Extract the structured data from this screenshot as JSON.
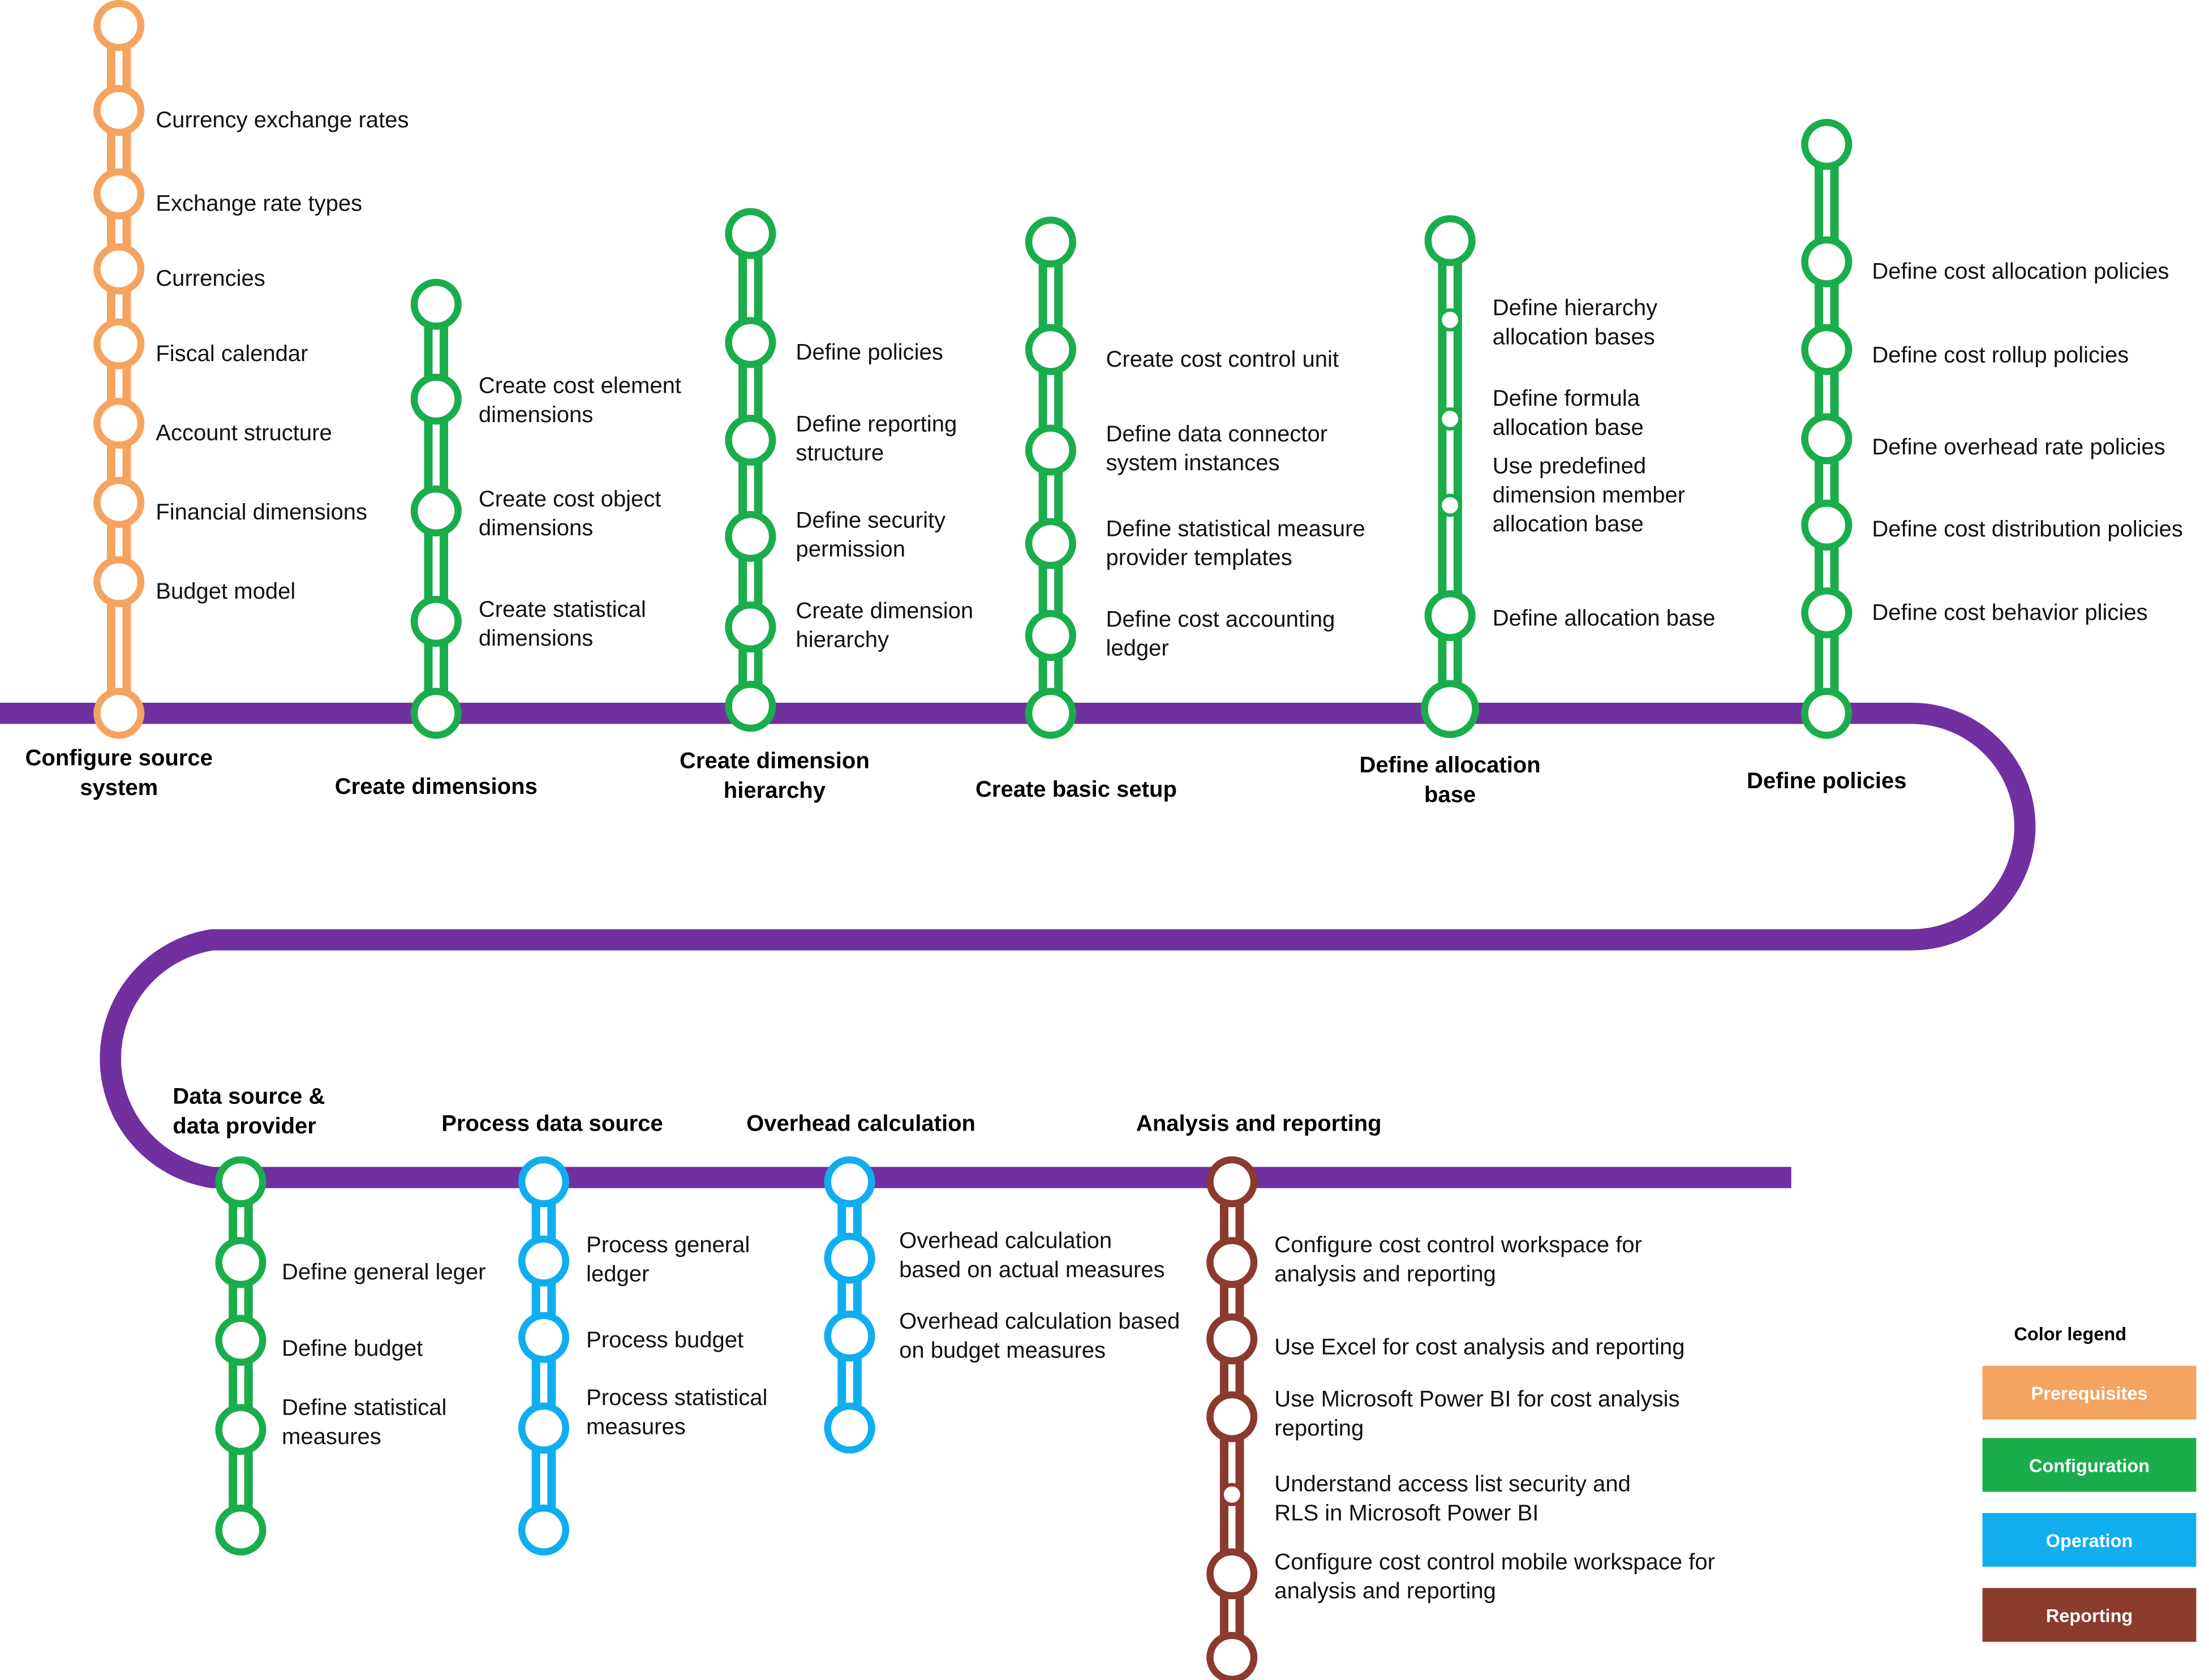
{
  "colors": {
    "line": "#7030a0",
    "prerequisites": "#f4a460",
    "configuration": "#1aad4b",
    "operation": "#10aeef",
    "reporting": "#8b3a2e"
  },
  "legend": {
    "title": "Color legend",
    "items": [
      {
        "label": "Prerequisites",
        "color_key": "prerequisites"
      },
      {
        "label": "Configuration",
        "color_key": "configuration"
      },
      {
        "label": "Operation",
        "color_key": "operation"
      },
      {
        "label": "Reporting",
        "color_key": "reporting"
      }
    ]
  },
  "stages": [
    {
      "id": "configure-source-system",
      "title": [
        "Configure source",
        "system"
      ],
      "category": "prerequisites",
      "items": [
        [
          "Currency exchange rates"
        ],
        [
          "Exchange rate types"
        ],
        [
          "Currencies"
        ],
        [
          "Fiscal calendar"
        ],
        [
          "Account structure"
        ],
        [
          "Financial dimensions"
        ],
        [
          "Budget model"
        ]
      ]
    },
    {
      "id": "create-dimensions",
      "title": [
        "Create dimensions"
      ],
      "category": "configuration",
      "items": [
        [
          "Create cost element",
          "dimensions"
        ],
        [
          "Create cost object",
          "dimensions"
        ],
        [
          "Create statistical",
          "dimensions"
        ]
      ]
    },
    {
      "id": "create-dimension-hierarchy",
      "title": [
        "Create dimension",
        "hierarchy"
      ],
      "category": "configuration",
      "items": [
        [
          "Define policies"
        ],
        [
          "Define reporting",
          "structure"
        ],
        [
          "Define security",
          "permission"
        ],
        [
          "Create dimension",
          "hierarchy"
        ]
      ]
    },
    {
      "id": "create-basic-setup",
      "title": [
        "Create basic setup"
      ],
      "category": "configuration",
      "items": [
        [
          "Create cost control unit"
        ],
        [
          "Define data connector",
          "system instances"
        ],
        [
          "Define statistical measure",
          "provider templates"
        ],
        [
          "Define cost accounting",
          "ledger"
        ]
      ]
    },
    {
      "id": "define-allocation-base",
      "title": [
        "Define allocation",
        "base"
      ],
      "category": "configuration",
      "items": [
        [
          "Define hierarchy",
          "allocation bases"
        ],
        [
          "Define formula",
          "allocation base"
        ],
        [
          "Use predefined",
          "dimension member",
          "allocation base"
        ],
        [
          "Define allocation base"
        ]
      ]
    },
    {
      "id": "define-policies",
      "title": [
        "Define policies"
      ],
      "category": "configuration",
      "items": [
        [
          "Define cost allocation policies"
        ],
        [
          "Define cost rollup policies"
        ],
        [
          "Define overhead rate policies"
        ],
        [
          "Define cost distribution policies"
        ],
        [
          "Define cost behavior plicies"
        ]
      ]
    },
    {
      "id": "data-source-data-provider",
      "title": [
        "Data source &",
        "data provider"
      ],
      "category": "configuration",
      "items": [
        [
          "Define general leger"
        ],
        [
          "Define budget"
        ],
        [
          "Define statistical",
          "measures"
        ]
      ]
    },
    {
      "id": "process-data-source",
      "title": [
        "Process data source"
      ],
      "category": "operation",
      "items": [
        [
          "Process general",
          "ledger"
        ],
        [
          "Process budget"
        ],
        [
          "Process statistical",
          "measures"
        ]
      ]
    },
    {
      "id": "overhead-calculation",
      "title": [
        "Overhead calculation"
      ],
      "category": "operation",
      "items": [
        [
          "Overhead calculation",
          "based on actual measures"
        ],
        [
          "Overhead calculation based",
          "on budget measures"
        ]
      ]
    },
    {
      "id": "analysis-and-reporting",
      "title": [
        "Analysis and reporting"
      ],
      "category": "reporting",
      "items": [
        [
          "Configure cost control workspace for",
          "analysis and reporting"
        ],
        [
          "Use Excel for cost analysis and reporting"
        ],
        [
          "Use Microsoft Power BI for cost analysis",
          "reporting"
        ],
        [
          "Understand access list security and",
          "RLS in Microsoft Power BI"
        ],
        [
          "Configure cost control mobile workspace for",
          "analysis and reporting"
        ]
      ]
    }
  ]
}
